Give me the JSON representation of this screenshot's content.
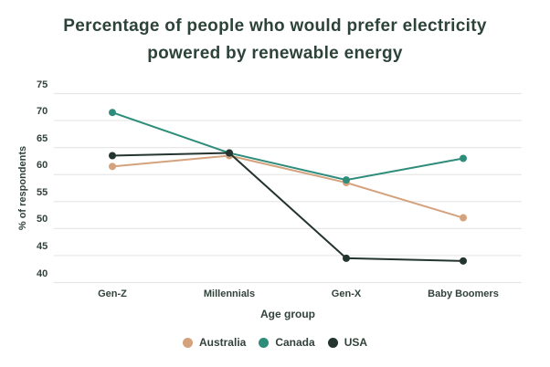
{
  "title": {
    "line1": "Percentage of people who would prefer electricity",
    "line2": "powered by renewable energy"
  },
  "chart_data": {
    "type": "line",
    "title": "Percentage of people who would prefer electricity powered by renewable energy",
    "categories": [
      "Gen-Z",
      "Millennials",
      "Gen-X",
      "Baby Boomers"
    ],
    "series": [
      {
        "name": "Australia",
        "color": "#D4A27D",
        "values": [
          61.5,
          63.5,
          58.5,
          52
        ]
      },
      {
        "name": "Canada",
        "color": "#2E8C7B",
        "values": [
          71.5,
          64,
          59,
          63
        ]
      },
      {
        "name": "USA",
        "color": "#24342E",
        "values": [
          63.5,
          64,
          44.5,
          44
        ]
      }
    ],
    "xlabel": "Age group",
    "ylabel": "% of respondents",
    "ylim": [
      40,
      75
    ],
    "yticks": [
      75,
      70,
      65,
      60,
      55,
      50,
      45,
      40
    ],
    "grid": true,
    "legend_position": "bottom"
  },
  "style": {
    "title_color": "#2D433A",
    "axis_text_color": "#32423A",
    "gridline_color": "#E7E7E7",
    "background": "#FFFFFF"
  }
}
